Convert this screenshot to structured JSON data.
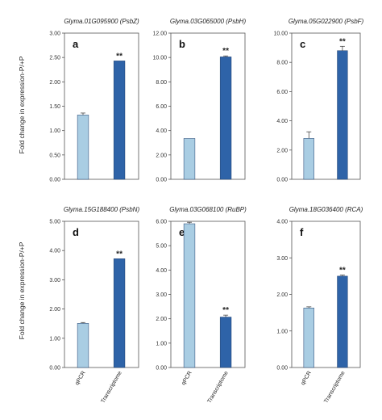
{
  "figure": {
    "ylabel_top": "Fold change in expression-P/+P",
    "ylabel_bottom": "Fold change in expression-P/+P",
    "x_categories": [
      "qPCR",
      "Transcriptome"
    ],
    "colors": {
      "qPCR": "#a9cde3",
      "Transcriptome": "#2e63a8",
      "bar_edge": "#1f3f6e"
    }
  },
  "chart_data": [
    {
      "type": "bar",
      "panel": "a",
      "title": "Glyma.01G095900 (PsbZ)",
      "categories": [
        "qPCR",
        "Transcriptome"
      ],
      "values": [
        1.32,
        2.43
      ],
      "errors": [
        0.04,
        0
      ],
      "significance": [
        "",
        "**"
      ],
      "ylim": [
        0,
        3.0
      ],
      "yticks": [
        "0.00",
        "0.50",
        "1.00",
        "1.50",
        "2.00",
        "2.50",
        "3.00"
      ]
    },
    {
      "type": "bar",
      "panel": "b",
      "title": "Glyma.03G065000 (PsbH)",
      "categories": [
        "qPCR",
        "Transcriptome"
      ],
      "values": [
        3.35,
        10.05
      ],
      "errors": [
        0,
        0.08
      ],
      "significance": [
        "",
        "**"
      ],
      "ylim": [
        0,
        12.0
      ],
      "yticks": [
        "0.00",
        "2.00",
        "4.00",
        "6.00",
        "8.00",
        "10.00",
        "12.00"
      ]
    },
    {
      "type": "bar",
      "panel": "c",
      "title": "Glyma.05G022900 (PsbF)",
      "categories": [
        "qPCR",
        "Transcriptome"
      ],
      "values": [
        2.8,
        8.8
      ],
      "errors": [
        0.45,
        0.3
      ],
      "significance": [
        "",
        "**"
      ],
      "ylim": [
        0,
        10.0
      ],
      "yticks": [
        "0.00",
        "2.00",
        "4.00",
        "6.00",
        "8.00",
        "10.00"
      ]
    },
    {
      "type": "bar",
      "panel": "d",
      "title": "Glyma.15G188400 (PsbN)",
      "categories": [
        "qPCR",
        "Transcriptome"
      ],
      "values": [
        1.51,
        3.72
      ],
      "errors": [
        0.03,
        0
      ],
      "significance": [
        "",
        "**"
      ],
      "ylim": [
        0,
        5.0
      ],
      "yticks": [
        "0.00",
        "1.00",
        "2.00",
        "3.00",
        "4.00",
        "5.00"
      ]
    },
    {
      "type": "bar",
      "panel": "e",
      "title": "Glyma.03G068100 (RuBP)",
      "categories": [
        "qPCR",
        "Transcriptome"
      ],
      "values": [
        5.9,
        2.07
      ],
      "errors": [
        0.06,
        0.08
      ],
      "significance": [
        "",
        "**"
      ],
      "ylim": [
        0,
        6.0
      ],
      "yticks": [
        "0.00",
        "1.00",
        "2.00",
        "3.00",
        "4.00",
        "5.00",
        "6.00"
      ]
    },
    {
      "type": "bar",
      "panel": "f",
      "title": "Glyma.18G036400 (RCA)",
      "categories": [
        "qPCR",
        "Transcriptome"
      ],
      "values": [
        1.63,
        2.5
      ],
      "errors": [
        0.03,
        0.03
      ],
      "significance": [
        "",
        "**"
      ],
      "ylim": [
        0,
        4.0
      ],
      "yticks": [
        "0.00",
        "1.00",
        "2.00",
        "3.00",
        "4.00"
      ]
    }
  ]
}
